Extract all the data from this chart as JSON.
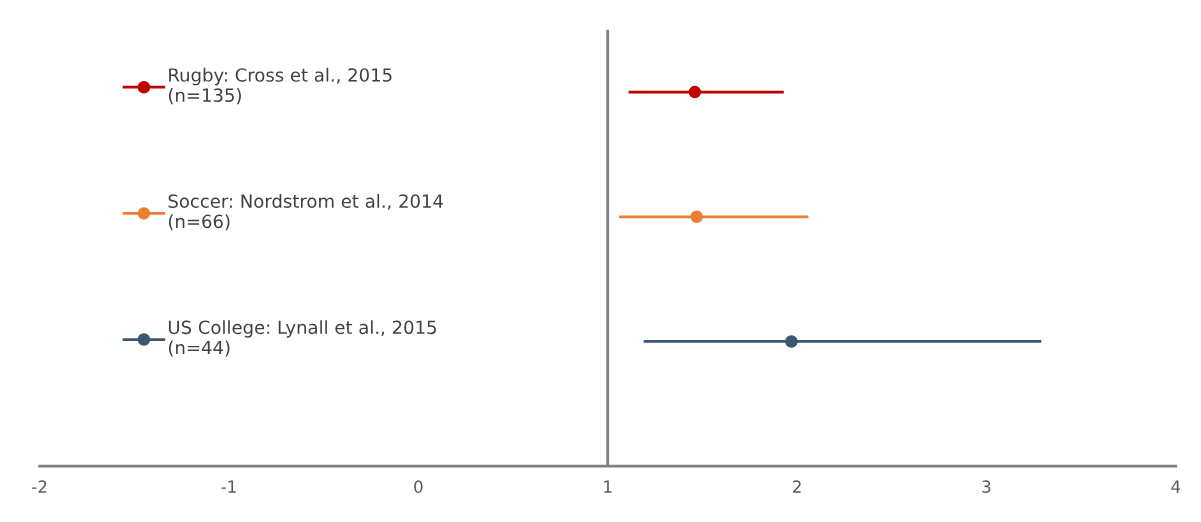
{
  "chart_data": {
    "type": "scatter",
    "orientation": "horizontal",
    "categories": [
      null,
      null,
      null
    ],
    "series": [
      {
        "name": "Rugby: Cross et al., 2015\n(n=135)",
        "color": "#c00000",
        "values": [
          1.46,
          null,
          null
        ],
        "errors": [
          [
            1.11,
            1.93
          ],
          null,
          null
        ]
      },
      {
        "name": "Soccer: Nordstrom et al., 2014\n(n=66)",
        "color": "#ed7d31",
        "values": [
          null,
          1.47,
          null
        ],
        "errors": [
          null,
          [
            1.06,
            2.06
          ],
          null
        ]
      },
      {
        "name": "US College: Lynall et al., 2015\n(n=44)",
        "color": "#3b5573",
        "values": [
          null,
          null,
          1.97
        ],
        "errors": [
          null,
          null,
          [
            1.19,
            3.29
          ]
        ]
      }
    ],
    "xlim": [
      -2,
      4
    ],
    "xticks": [
      -2,
      -1,
      0,
      1,
      2,
      3,
      4
    ],
    "ref_lines": [
      {
        "axis": "x",
        "value": 1,
        "color": "#808080"
      }
    ],
    "marker": "circle",
    "legend": "top left",
    "grid": false
  }
}
